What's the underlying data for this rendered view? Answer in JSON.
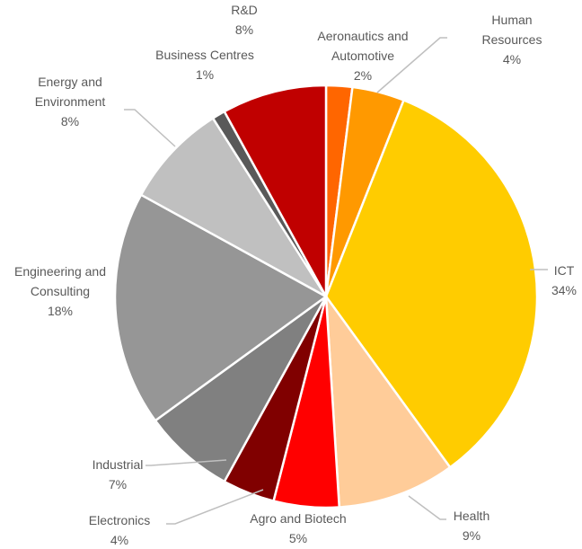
{
  "chart_data": {
    "type": "pie",
    "categories": [
      "Aeronautics and\nAutomotive",
      "Human Resources",
      "ICT",
      "Health",
      "Agro and Biotech",
      "Electronics",
      "Industrial",
      "Engineering and\nConsulting",
      "Energy and\nEnvironment",
      "Business Centres",
      "R&D"
    ],
    "values": [
      2,
      4,
      34,
      9,
      5,
      4,
      7,
      18,
      8,
      1,
      8
    ],
    "value_labels": [
      "2%",
      "4%",
      "34%",
      "9%",
      "5%",
      "4%",
      "7%",
      "18%",
      "8%",
      "1%",
      "8%"
    ],
    "colors": [
      "#ff6600",
      "#ff9900",
      "#ffcc00",
      "#ffcc99",
      "#ff0000",
      "#800000",
      "#808080",
      "#969696",
      "#c0c0c0",
      "#595959",
      "#c00000"
    ]
  }
}
